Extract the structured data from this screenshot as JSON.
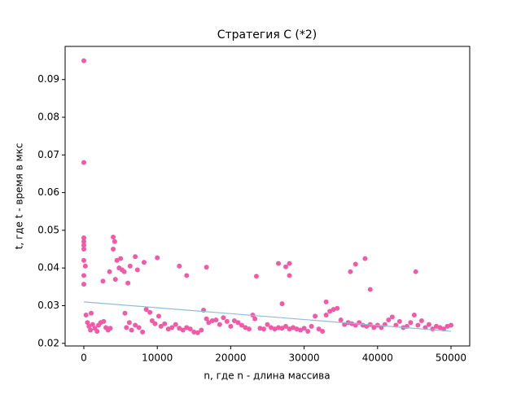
{
  "chart_data": {
    "type": "scatter",
    "title": "Стратегия С (*2)",
    "xlabel": "n, где n - длина массива",
    "ylabel": "t, где t - время в мкс",
    "xlim": [
      -2550,
      52550
    ],
    "ylim": [
      0.0193,
      0.0988
    ],
    "xticks": [
      0,
      10000,
      20000,
      30000,
      40000,
      50000
    ],
    "yticks": [
      0.02,
      0.03,
      0.04,
      0.05,
      0.06,
      0.07,
      0.08,
      0.09
    ],
    "color": "#f25aa8",
    "x": [
      0,
      0,
      0,
      0,
      0,
      0,
      0,
      200,
      0,
      0,
      300,
      1000,
      2600,
      3500,
      4000,
      4200,
      4000,
      4500,
      5000,
      4800,
      5200,
      5500,
      4300,
      6000,
      6300,
      7000,
      7300,
      8200,
      10000,
      13000,
      14000,
      16700,
      23500,
      26500,
      27000,
      27500,
      28000,
      28000,
      36300,
      37000,
      38300,
      39000,
      45200,
      33000,
      500,
      700,
      900,
      1200,
      1500,
      1800,
      2000,
      2300,
      2700,
      3000,
      3300,
      3600,
      5600,
      5800,
      6200,
      6500,
      7000,
      7500,
      8000,
      8500,
      9000,
      9300,
      9700,
      10200,
      10500,
      11000,
      11500,
      12000,
      12500,
      13000,
      13500,
      14000,
      14500,
      15000,
      15500,
      16000,
      16300,
      16700,
      17000,
      17500,
      18000,
      18500,
      19000,
      19500,
      20000,
      20500,
      21000,
      21500,
      22000,
      22500,
      23000,
      23300,
      24000,
      24500,
      25000,
      25500,
      26000,
      26500,
      27000,
      27500,
      28000,
      28500,
      29000,
      29500,
      30000,
      30500,
      31000,
      31500,
      32000,
      32500,
      33000,
      33500,
      34000,
      34500,
      35000,
      35500,
      36000,
      36500,
      37000,
      37500,
      38000,
      38500,
      39000,
      39500,
      40000,
      40500,
      41000,
      41500,
      42000,
      42500,
      43000,
      43500,
      44000,
      44500,
      45000,
      45500,
      46000,
      46500,
      47000,
      47500,
      48000,
      48500,
      49000,
      49500,
      50000
    ],
    "values": [
      0.095,
      0.068,
      0.048,
      0.047,
      0.046,
      0.045,
      0.042,
      0.0405,
      0.038,
      0.0357,
      0.0275,
      0.028,
      0.0365,
      0.039,
      0.0482,
      0.047,
      0.045,
      0.042,
      0.0425,
      0.04,
      0.0395,
      0.039,
      0.037,
      0.036,
      0.0405,
      0.043,
      0.0395,
      0.0415,
      0.0427,
      0.0405,
      0.038,
      0.0402,
      0.0378,
      0.0412,
      0.0305,
      0.0403,
      0.0412,
      0.038,
      0.039,
      0.041,
      0.0425,
      0.0343,
      0.039,
      0.031,
      0.0255,
      0.0245,
      0.0235,
      0.025,
      0.024,
      0.0232,
      0.0248,
      0.0255,
      0.0258,
      0.0242,
      0.0235,
      0.024,
      0.028,
      0.0242,
      0.0255,
      0.0235,
      0.0248,
      0.0242,
      0.023,
      0.029,
      0.0282,
      0.026,
      0.0252,
      0.0272,
      0.0245,
      0.0252,
      0.0238,
      0.0242,
      0.025,
      0.024,
      0.0235,
      0.0242,
      0.0238,
      0.023,
      0.0228,
      0.0235,
      0.0288,
      0.0265,
      0.0255,
      0.026,
      0.0262,
      0.025,
      0.0268,
      0.0258,
      0.0245,
      0.026,
      0.0255,
      0.0248,
      0.0242,
      0.0238,
      0.0275,
      0.0265,
      0.024,
      0.0238,
      0.025,
      0.0242,
      0.0238,
      0.0242,
      0.024,
      0.0245,
      0.0238,
      0.0242,
      0.0238,
      0.0235,
      0.024,
      0.0232,
      0.0245,
      0.0272,
      0.0238,
      0.0232,
      0.0275,
      0.0285,
      0.029,
      0.0293,
      0.0262,
      0.025,
      0.0255,
      0.0252,
      0.0248,
      0.0255,
      0.0248,
      0.0245,
      0.025,
      0.0242,
      0.0248,
      0.0242,
      0.025,
      0.0262,
      0.027,
      0.0248,
      0.0258,
      0.0242,
      0.0245,
      0.0255,
      0.0275,
      0.0248,
      0.026,
      0.0242,
      0.025,
      0.0238,
      0.0245,
      0.0242,
      0.0238,
      0.0245,
      0.0248
    ],
    "trend": {
      "x": [
        0,
        50000
      ],
      "values": [
        0.031,
        0.0232
      ],
      "color": "#8fbcd8"
    }
  }
}
